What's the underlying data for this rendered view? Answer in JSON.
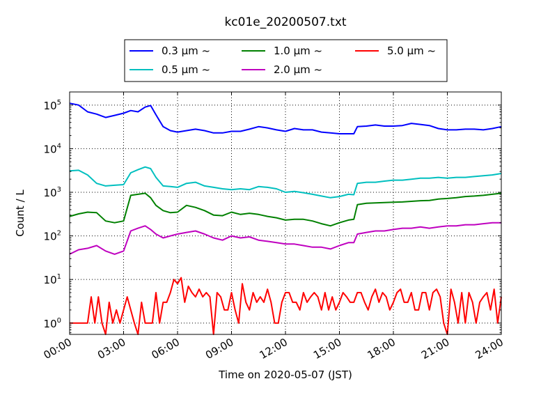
{
  "chart_data": {
    "type": "line",
    "title": "kc01e_20200507.txt",
    "xlabel": "Time on 2020-05-07 (JST)",
    "ylabel": "Count / L",
    "x_unit": "hour",
    "xlim": [
      0,
      24
    ],
    "ylim": [
      0.55,
      200000
    ],
    "yscale": "log",
    "grid": true,
    "legend_position": "top-center",
    "x_ticks": [
      0,
      3,
      6,
      9,
      12,
      15,
      18,
      21,
      24
    ],
    "x_tick_labels": [
      "00:00",
      "03:00",
      "06:00",
      "09:00",
      "12:00",
      "15:00",
      "18:00",
      "21:00",
      "24:00"
    ],
    "y_ticks": [
      1,
      10,
      100,
      1000,
      10000,
      100000
    ],
    "y_tick_labels": [
      "10",
      "10",
      "10",
      "10",
      "10",
      "10"
    ],
    "y_tick_exponents": [
      "0",
      "1",
      "2",
      "3",
      "4",
      "5"
    ],
    "series": [
      {
        "name": "0.3 μm ~",
        "color": "#0000ff",
        "x": [
          0,
          0.5,
          1,
          1.5,
          2,
          2.5,
          3,
          3.4,
          3.8,
          4.2,
          4.5,
          4.8,
          5.2,
          5.6,
          6,
          6.5,
          7,
          7.5,
          8,
          8.5,
          9,
          9.5,
          10,
          10.5,
          11,
          11.5,
          12,
          12.5,
          13,
          13.5,
          14,
          14.5,
          15,
          15.5,
          15.8,
          16,
          16.5,
          17,
          17.5,
          18,
          18.5,
          19,
          19.5,
          20,
          20.5,
          21,
          21.5,
          22,
          22.5,
          23,
          23.5,
          24
        ],
        "values": [
          110000,
          100000,
          70000,
          62000,
          52000,
          58000,
          65000,
          75000,
          70000,
          90000,
          98000,
          60000,
          32000,
          26000,
          24000,
          26000,
          28000,
          26000,
          23000,
          23000,
          25000,
          25000,
          28000,
          32000,
          30000,
          27000,
          25000,
          29000,
          27000,
          27000,
          24000,
          23000,
          22000,
          22000,
          22000,
          32000,
          33000,
          35000,
          33000,
          33000,
          34000,
          38000,
          36000,
          34000,
          29000,
          27000,
          27000,
          28000,
          28000,
          27000,
          29000,
          32000
        ]
      },
      {
        "name": "0.5 μm ~",
        "color": "#00bfbf",
        "x": [
          0,
          0.5,
          1,
          1.5,
          2,
          2.5,
          3,
          3.4,
          3.8,
          4.2,
          4.5,
          4.8,
          5.2,
          5.6,
          6,
          6.5,
          7,
          7.5,
          8,
          8.5,
          9,
          9.5,
          10,
          10.5,
          11,
          11.5,
          12,
          12.5,
          13,
          13.5,
          14,
          14.5,
          15,
          15.5,
          15.8,
          16,
          16.5,
          17,
          17.5,
          18,
          18.5,
          19,
          19.5,
          20,
          20.5,
          21,
          21.5,
          22,
          22.5,
          23,
          23.5,
          24
        ],
        "values": [
          3100,
          3200,
          2500,
          1600,
          1400,
          1450,
          1500,
          2800,
          3300,
          3800,
          3500,
          2200,
          1400,
          1350,
          1300,
          1600,
          1700,
          1400,
          1300,
          1200,
          1150,
          1200,
          1150,
          1350,
          1300,
          1200,
          1000,
          1050,
          980,
          900,
          820,
          750,
          800,
          900,
          880,
          1600,
          1700,
          1700,
          1800,
          1900,
          1900,
          2000,
          2100,
          2100,
          2200,
          2100,
          2200,
          2200,
          2300,
          2400,
          2500,
          2700
        ]
      },
      {
        "name": "1.0 μm ~",
        "color": "#008000",
        "x": [
          0,
          0.5,
          1,
          1.5,
          2,
          2.5,
          3,
          3.4,
          3.8,
          4.2,
          4.5,
          4.8,
          5.2,
          5.6,
          6,
          6.5,
          7,
          7.5,
          8,
          8.5,
          9,
          9.5,
          10,
          10.5,
          11,
          11.5,
          12,
          12.5,
          13,
          13.5,
          14,
          14.5,
          15,
          15.5,
          15.8,
          16,
          16.5,
          17,
          17.5,
          18,
          18.5,
          19,
          19.5,
          20,
          20.5,
          21,
          21.5,
          22,
          22.5,
          23,
          23.5,
          24
        ],
        "values": [
          280,
          320,
          350,
          340,
          220,
          200,
          220,
          850,
          900,
          950,
          750,
          500,
          380,
          340,
          350,
          500,
          450,
          380,
          300,
          290,
          350,
          310,
          330,
          310,
          280,
          260,
          230,
          240,
          240,
          220,
          190,
          170,
          200,
          230,
          240,
          520,
          560,
          570,
          580,
          590,
          600,
          620,
          640,
          650,
          700,
          720,
          750,
          800,
          820,
          850,
          900,
          950
        ]
      },
      {
        "name": "2.0 μm ~",
        "color": "#bf00bf",
        "x": [
          0,
          0.5,
          1,
          1.5,
          2,
          2.5,
          3,
          3.4,
          3.8,
          4.2,
          4.5,
          4.8,
          5.2,
          5.6,
          6,
          6.5,
          7,
          7.5,
          8,
          8.5,
          9,
          9.5,
          10,
          10.5,
          11,
          11.5,
          12,
          12.5,
          13,
          13.5,
          14,
          14.5,
          15,
          15.5,
          15.8,
          16,
          16.5,
          17,
          17.5,
          18,
          18.5,
          19,
          19.5,
          20,
          20.5,
          21,
          21.5,
          22,
          22.5,
          23,
          23.5,
          24
        ],
        "values": [
          38,
          48,
          52,
          60,
          45,
          38,
          45,
          130,
          150,
          170,
          140,
          110,
          90,
          100,
          110,
          120,
          130,
          110,
          90,
          80,
          100,
          90,
          95,
          80,
          75,
          70,
          65,
          65,
          60,
          55,
          55,
          50,
          60,
          70,
          70,
          110,
          120,
          130,
          130,
          140,
          150,
          150,
          160,
          150,
          160,
          170,
          170,
          180,
          180,
          190,
          200,
          200
        ]
      },
      {
        "name": "5.0 μm ~",
        "color": "#ff0000",
        "x": [
          0,
          0.5,
          1,
          1.2,
          1.4,
          1.6,
          1.8,
          2,
          2.2,
          2.4,
          2.6,
          2.8,
          3,
          3.2,
          3.4,
          3.6,
          3.8,
          4,
          4.2,
          4.4,
          4.6,
          4.8,
          5,
          5.2,
          5.4,
          5.6,
          5.8,
          6,
          6.2,
          6.4,
          6.6,
          6.8,
          7,
          7.2,
          7.4,
          7.6,
          7.8,
          8,
          8.2,
          8.4,
          8.6,
          8.8,
          9,
          9.2,
          9.4,
          9.6,
          9.8,
          10,
          10.2,
          10.4,
          10.6,
          10.8,
          11,
          11.2,
          11.4,
          11.6,
          11.8,
          12,
          12.2,
          12.4,
          12.6,
          12.8,
          13,
          13.2,
          13.4,
          13.6,
          13.8,
          14,
          14.2,
          14.4,
          14.6,
          14.8,
          15,
          15.2,
          15.4,
          15.6,
          15.8,
          16,
          16.2,
          16.4,
          16.6,
          16.8,
          17,
          17.2,
          17.4,
          17.6,
          17.8,
          18,
          18.2,
          18.4,
          18.6,
          18.8,
          19,
          19.2,
          19.4,
          19.6,
          19.8,
          20,
          20.2,
          20.4,
          20.6,
          20.8,
          21,
          21.2,
          21.4,
          21.6,
          21.8,
          22,
          22.2,
          22.4,
          22.6,
          22.8,
          23,
          23.2,
          23.4,
          23.6,
          23.8,
          24
        ],
        "values": [
          1,
          1,
          1,
          4,
          1,
          4,
          1,
          0.5,
          3,
          1,
          2,
          1,
          2,
          4,
          2,
          1,
          0.5,
          3,
          1,
          1,
          1,
          5,
          1,
          3,
          3,
          5,
          10,
          8,
          11,
          3,
          7,
          5,
          4,
          6,
          4,
          5,
          4,
          0.5,
          5,
          4,
          2,
          2,
          5,
          2,
          1,
          8,
          3,
          2,
          5,
          3,
          4,
          3,
          6,
          3,
          1,
          1,
          3,
          5,
          5,
          3,
          3,
          2,
          5,
          3,
          4,
          5,
          4,
          2,
          5,
          2,
          4,
          2,
          3,
          5,
          4,
          3,
          3,
          5,
          5,
          3,
          2,
          4,
          6,
          3,
          5,
          4,
          2,
          3,
          5,
          6,
          3,
          3,
          5,
          2,
          2,
          5,
          5,
          2,
          5,
          6,
          4,
          1,
          0.5,
          6,
          3,
          1,
          5,
          1,
          5,
          3,
          1,
          3,
          4,
          5,
          2,
          6,
          1,
          4
        ]
      }
    ]
  }
}
